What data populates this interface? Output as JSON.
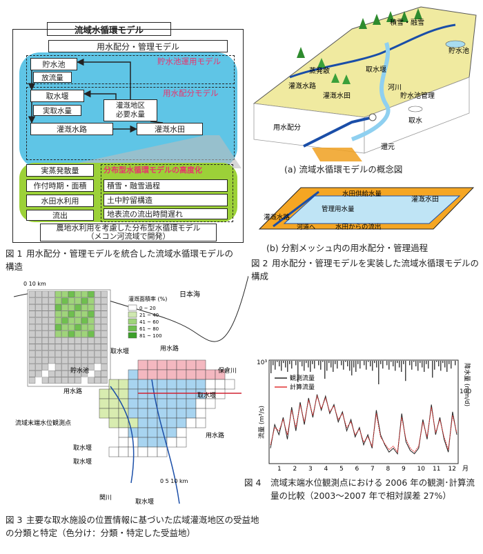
{
  "fig1": {
    "title": "流域水循環モデル",
    "model_header": "用水配分・管理モデル",
    "reservoir_model": "貯水池運用モデル",
    "allocation_model": "用水配分モデル",
    "reservoir": "貯水池",
    "release": "放流量",
    "intake_weir": "取水堰",
    "actual_intake": "実取水量",
    "irrigation_area": "灌漑地区",
    "required_water": "必要水量",
    "canal": "灌漑水路",
    "paddy": "灌漑水田",
    "distributed_model": "分布型水循環モデルの高度化",
    "evapotranspiration": "実蒸発散量",
    "cropping": "作付時期・面積",
    "paddy_use": "水田水利用",
    "outflow": "流出",
    "snow": "積雪・融雪過程",
    "soil": "土中貯留構造",
    "delay": "地表流の流出時間遅れ",
    "footer1": "農地水利用を考慮した分布型水循環モデル",
    "footer2": "（メコン河流域で開発）",
    "caption_num": "図 1",
    "caption": "用水配分・管理モデルを統合した流域水循環モデルの構造"
  },
  "fig2": {
    "snow": "積雪・融雪",
    "reservoir": "貯水池",
    "evap": "蒸発散",
    "intake_weir": "取水堰",
    "canal": "灌漑水路",
    "paddy": "灌漑水田",
    "river": "河川",
    "reservoir_mgmt": "貯水池管理",
    "intake": "取水",
    "allocation": "用水配分",
    "return": "還元",
    "caption_a": "(a)  流域水循環モデルの概念図",
    "b_paddy": "灌漑水田",
    "b_supply": "水田供給水量",
    "b_mgmt": "管理用水量",
    "b_canal": "灌漑水路",
    "b_to_river": "河道へ",
    "b_outflow": "水田からの流出",
    "caption_b": "(b)  分割メッシュ内の用水配分・管理過程",
    "caption_num": "図 2",
    "caption": "用水配分・管理モデルを実装した流域水循環モデルの構成"
  },
  "fig3": {
    "scale_inset": "0      10 km",
    "legend_title": "灌漑面積率 (%)",
    "legend_items": [
      "0 ~ 20",
      "21 ~ 40",
      "41 ~ 60",
      "61 ~ 80",
      "81 ~ 100"
    ],
    "legend_colors": [
      "#ffffff",
      "#cfe8b0",
      "#9fd47a",
      "#6fbf4f",
      "#3da02a"
    ],
    "sea": "日本海",
    "weir1": "取水堰",
    "res": "貯水池",
    "canal_top": "用水路",
    "hojo": "保倉川",
    "weir_r": "取水堰",
    "canal_left": "用水路",
    "station": "流域末端水位観測点",
    "canal_right": "用水路",
    "weir_l": "取水堰",
    "weir_c": "取水堰",
    "sekikawa": "関川",
    "weir_b": "取水堰",
    "scale_main": "0         5        10 km",
    "caption_num": "図 3",
    "caption": "主要な取水施設の位置情報に基づいた広域灌漑地区の受益地の分類と特定（色分け：分類・特定した受益地）"
  },
  "fig4": {
    "chart_data": {
      "type": "line",
      "ylabel_left": "流量 (m³/s)",
      "ylabel_right": "降水量 (mm/d)",
      "y_top_tick": "10³",
      "y_right_tick": "100",
      "xlabel": "月",
      "x_ticks": [
        "1",
        "2",
        "3",
        "4",
        "5",
        "6",
        "7",
        "8",
        "9",
        "10",
        "11",
        "12"
      ],
      "series": [
        {
          "name": "観測流量",
          "color": "#222222",
          "values": [
            35,
            90,
            60,
            120,
            50,
            180,
            70,
            220,
            90,
            260,
            120,
            300,
            160,
            280,
            140,
            200,
            100,
            150,
            70,
            110,
            55,
            80,
            40,
            60,
            35,
            160,
            60,
            40,
            30,
            35,
            28,
            140,
            45,
            32,
            28,
            35,
            110,
            50,
            200,
            60,
            120,
            50,
            30,
            150,
            60
          ]
        },
        {
          "name": "計算流量",
          "color": "#e03030",
          "values": [
            40,
            80,
            70,
            110,
            60,
            160,
            80,
            200,
            100,
            240,
            130,
            280,
            170,
            260,
            150,
            190,
            110,
            140,
            80,
            100,
            60,
            75,
            45,
            55,
            38,
            140,
            55,
            42,
            33,
            38,
            30,
            120,
            50,
            35,
            30,
            38,
            100,
            55,
            180,
            65,
            110,
            55,
            33,
            130,
            65
          ]
        }
      ]
    },
    "legend_obs": "観測流量",
    "legend_calc": "計算流量",
    "caption_num": "図 4",
    "caption": "流域末端水位観測点における 2006 年の観測･計算流量の比較（2003～2007 年で相対誤差 27%）"
  }
}
